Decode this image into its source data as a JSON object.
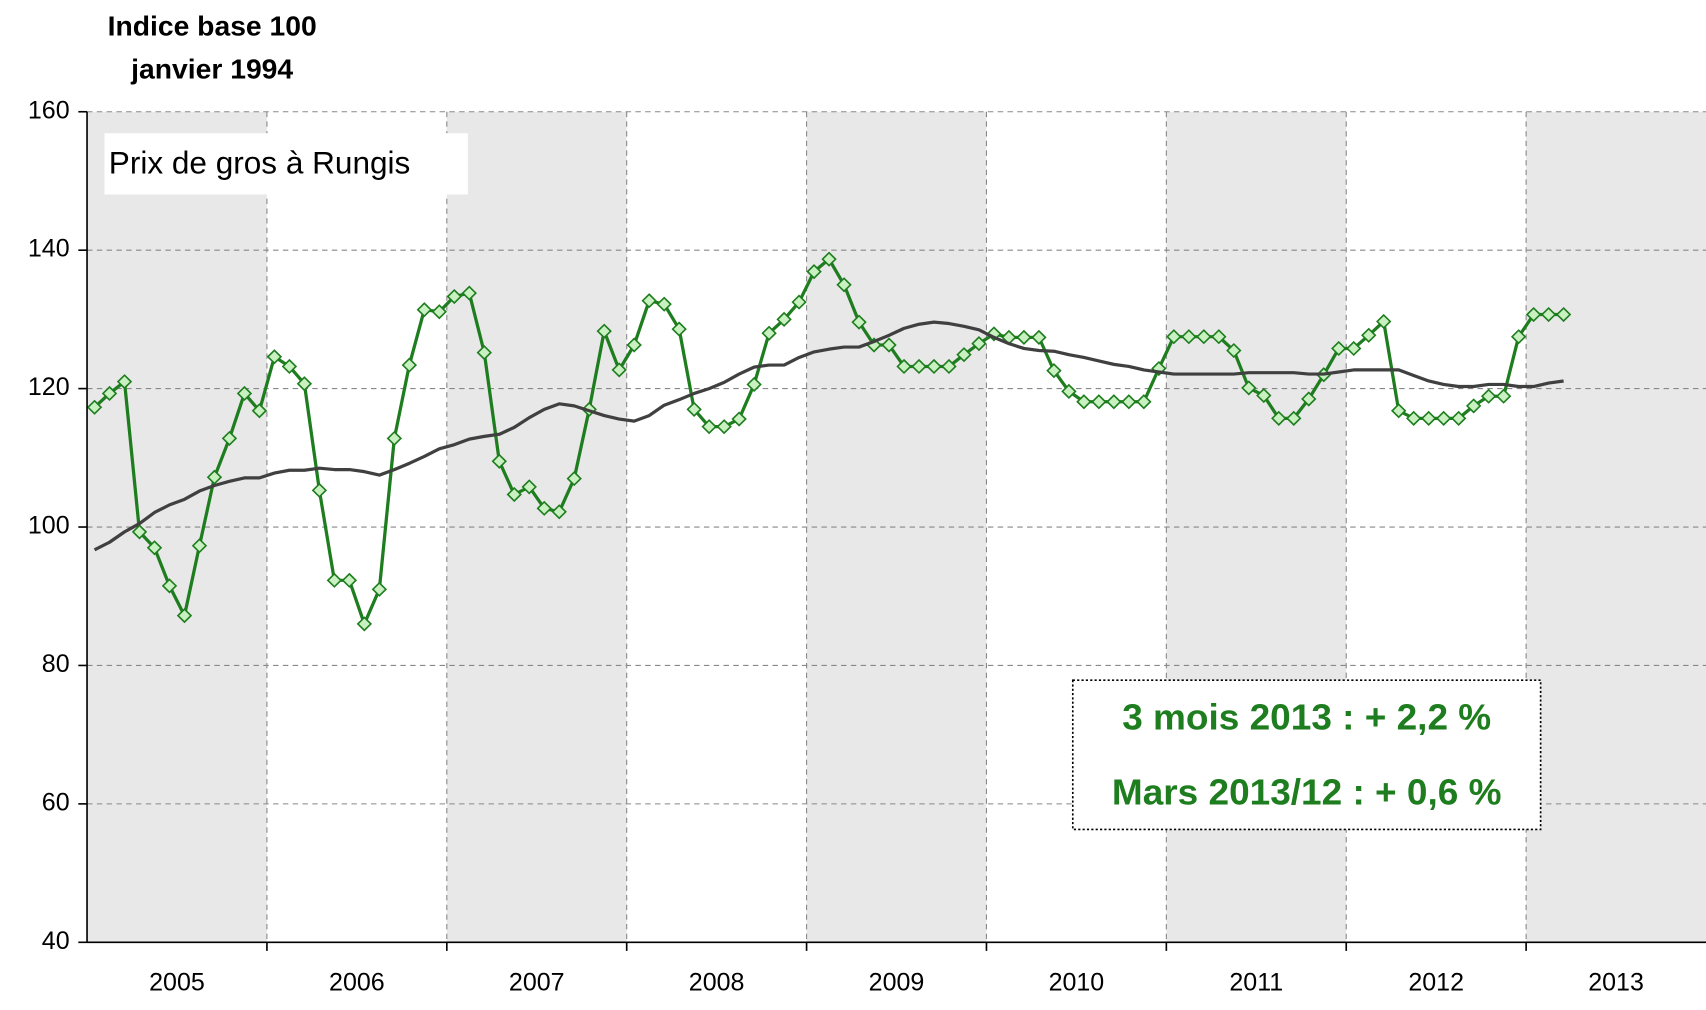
{
  "chart_data": {
    "type": "line",
    "y_axis_title": [
      "Indice base 100",
      "janvier 1994"
    ],
    "annotation": "Prix de gros à Rungis",
    "summary_box": [
      "3 mois 2013 : + 2,2 %",
      "Mars 2013/12 : + 0,6 %"
    ],
    "categories": [
      "2005",
      null,
      null,
      null,
      null,
      null,
      null,
      null,
      null,
      null,
      null,
      null,
      "2006",
      null,
      null,
      null,
      null,
      null,
      null,
      null,
      null,
      null,
      null,
      null,
      "2007",
      null,
      null,
      null,
      null,
      null,
      null,
      null,
      null,
      null,
      null,
      null,
      "2008",
      null,
      null,
      null,
      null,
      null,
      null,
      null,
      null,
      null,
      null,
      null,
      "2009",
      null,
      null,
      null,
      null,
      null,
      null,
      null,
      null,
      null,
      null,
      null,
      "2010",
      null,
      null,
      null,
      null,
      null,
      null,
      null,
      null,
      null,
      null,
      null,
      "2011",
      null,
      null,
      null,
      null,
      null,
      null,
      null,
      null,
      null,
      null,
      null,
      "2012",
      null,
      null,
      null,
      null,
      null,
      null,
      null,
      null,
      null,
      null,
      null,
      "2013",
      null,
      null,
      null,
      null,
      null,
      null,
      null,
      null,
      null,
      null,
      null
    ],
    "series": [
      {
        "color": "#1e7d1e",
        "marker_fill": "#c8f0c0",
        "markers": true,
        "values": [
          117.3,
          119.3,
          121,
          99.3,
          97,
          91.5,
          87.2,
          97.3,
          107.2,
          112.8,
          119.3,
          116.8,
          124.6,
          123.2,
          120.7,
          105.3,
          92.3,
          92.3,
          86,
          91,
          112.8,
          123.4,
          131.4,
          131.1,
          133.3,
          133.8,
          125.2,
          109.5,
          104.7,
          105.8,
          102.7,
          102.2,
          107,
          117,
          128.3,
          122.7,
          126.3,
          132.7,
          132.2,
          128.6,
          117,
          114.5,
          114.5,
          115.6,
          120.6,
          128,
          130,
          132.5,
          136.9,
          138.7,
          135,
          129.6,
          126.3,
          126.3,
          123.2,
          123.2,
          123.2,
          123.2,
          124.9,
          126.5,
          127.9,
          127.4,
          127.4,
          127.4,
          122.6,
          119.6,
          118.1,
          118.1,
          118.1,
          118.1,
          118.1,
          122.9,
          127.5,
          127.5,
          127.5,
          127.5,
          125.5,
          120.1,
          119,
          115.7,
          115.7,
          118.5,
          122,
          125.8,
          125.8,
          127.7,
          129.7,
          116.8,
          115.7,
          115.7,
          115.7,
          115.7,
          117.5,
          118.9,
          118.9,
          127.5,
          130.7,
          130.7,
          130.7,
          null,
          null,
          null,
          null,
          null,
          null,
          null,
          null,
          null
        ]
      },
      {
        "color": "#404040",
        "markers": false,
        "values": [
          96.7,
          97.8,
          99.3,
          100.5,
          102.1,
          103.2,
          104,
          105.2,
          106,
          106.6,
          107.1,
          107.1,
          107.8,
          108.2,
          108.2,
          108.5,
          108.3,
          108.3,
          108,
          107.5,
          108.3,
          109.2,
          110.2,
          111.3,
          111.9,
          112.7,
          113.1,
          113.4,
          114.4,
          115.8,
          117,
          117.8,
          117.5,
          116.8,
          116.1,
          115.6,
          115.3,
          116.1,
          117.6,
          118.4,
          119.3,
          120,
          120.9,
          122.1,
          123.1,
          123.4,
          123.4,
          124.5,
          125.3,
          125.7,
          126,
          126,
          126.8,
          127.7,
          128.7,
          129.3,
          129.6,
          129.4,
          129,
          128.5,
          127.4,
          126.5,
          125.8,
          125.5,
          125.4,
          124.9,
          124.5,
          124,
          123.5,
          123.2,
          122.7,
          122.4,
          122.1,
          122.1,
          122.1,
          122.1,
          122.1,
          122.3,
          122.3,
          122.3,
          122.3,
          122.1,
          122.1,
          122.4,
          122.7,
          122.7,
          122.7,
          122.7,
          121.9,
          121.1,
          120.6,
          120.3,
          120.3,
          120.6,
          120.6,
          120.3,
          120.3,
          120.8,
          121.1,
          null,
          null,
          null,
          null,
          null,
          null,
          null,
          null,
          null
        ]
      }
    ],
    "ylim": [
      40,
      160
    ],
    "yticks": [
      40,
      60,
      80,
      100,
      120,
      140,
      160
    ],
    "grid": true
  }
}
